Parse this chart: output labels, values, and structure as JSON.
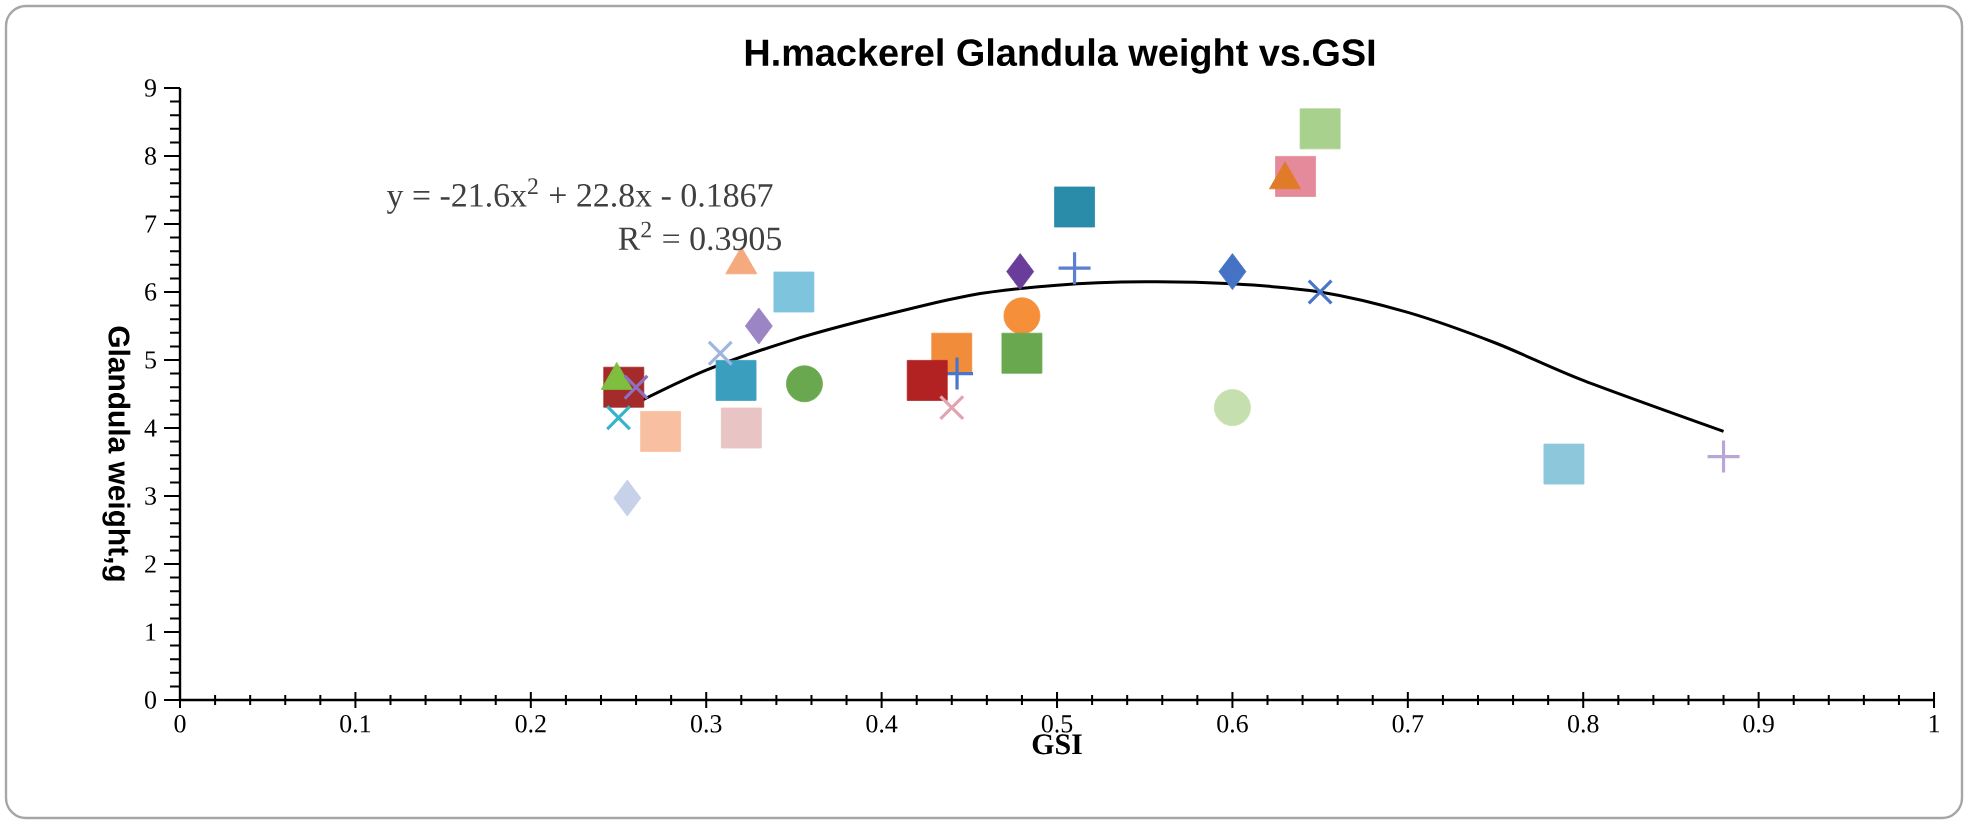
{
  "chart_data": {
    "type": "scatter",
    "title": "H.mackerel Glandula weight vs.GSI",
    "xlabel": "GSI",
    "ylabel": "Glandula weight,g",
    "annotations": [
      "y = -21.6x$^{2}$ + 22.8x - 0.1867",
      "R$^{2}$ = 0.3905"
    ],
    "xlim": [
      0,
      1
    ],
    "ylim": [
      0,
      9
    ],
    "xticks": [
      0,
      0.1,
      0.2,
      0.3,
      0.4,
      0.5,
      0.6,
      0.7,
      0.8,
      0.9,
      1
    ],
    "yticks": [
      0,
      1,
      2,
      3,
      4,
      5,
      6,
      7,
      8,
      9
    ],
    "series": [
      {
        "color": "#f5a97f",
        "marker": "triangle",
        "x": [
          0.32
        ],
        "values": [
          6.4
        ]
      },
      {
        "color": "#7fc4dd",
        "marker": "square",
        "x": [
          0.35
        ],
        "values": [
          6.0
        ]
      },
      {
        "color": "#9b85c4",
        "marker": "diamond",
        "x": [
          0.33
        ],
        "values": [
          5.5
        ]
      },
      {
        "color": "#6aa84f",
        "marker": "circle",
        "x": [
          0.356
        ],
        "values": [
          4.65
        ]
      },
      {
        "color": "#e8c4c4",
        "marker": "square",
        "x": [
          0.32
        ],
        "values": [
          4.0
        ]
      },
      {
        "color": "#c7d1ea",
        "marker": "diamond",
        "x": [
          0.255
        ],
        "values": [
          2.97
        ]
      },
      {
        "color": "#a52a2a",
        "marker": "square",
        "x": [
          0.253
        ],
        "values": [
          4.6
        ]
      },
      {
        "color": "#7fbf3f",
        "marker": "triangle",
        "x": [
          0.249
        ],
        "values": [
          4.7
        ]
      },
      {
        "color": "#38b4c8",
        "marker": "cross",
        "x": [
          0.25
        ],
        "values": [
          4.15
        ]
      },
      {
        "color": "#f8bfa0",
        "marker": "square",
        "x": [
          0.274
        ],
        "values": [
          3.95
        ]
      },
      {
        "color": "#8f6fbf",
        "marker": "cross",
        "x": [
          0.26
        ],
        "values": [
          4.6
        ]
      },
      {
        "color": "#3a9fbf",
        "marker": "square",
        "x": [
          0.317
        ],
        "values": [
          4.7
        ]
      },
      {
        "color": "#9fb5e0",
        "marker": "cross",
        "x": [
          0.308
        ],
        "values": [
          5.1
        ]
      },
      {
        "color": "#2a8ca8",
        "marker": "square",
        "x": [
          0.51
        ],
        "values": [
          7.25
        ]
      },
      {
        "color": "#6a3d9a",
        "marker": "diamond",
        "x": [
          0.479
        ],
        "values": [
          6.3
        ]
      },
      {
        "color": "#5b7fd1",
        "marker": "plus",
        "x": [
          0.51
        ],
        "values": [
          6.35
        ]
      },
      {
        "color": "#f58f3a",
        "marker": "circle",
        "x": [
          0.48
        ],
        "values": [
          5.65
        ]
      },
      {
        "color": "#6aa84f",
        "marker": "square",
        "x": [
          0.48
        ],
        "values": [
          5.1
        ]
      },
      {
        "color": "#f08c3a",
        "marker": "square",
        "x": [
          0.44
        ],
        "values": [
          5.1
        ]
      },
      {
        "color": "#4a76c9",
        "marker": "plus",
        "x": [
          0.443
        ],
        "values": [
          4.8
        ]
      },
      {
        "color": "#b22222",
        "marker": "square",
        "x": [
          0.426
        ],
        "values": [
          4.7
        ]
      },
      {
        "color": "#e3a3b0",
        "marker": "cross",
        "x": [
          0.44
        ],
        "values": [
          4.3
        ]
      },
      {
        "color": "#4472c4",
        "marker": "diamond",
        "x": [
          0.6
        ],
        "values": [
          6.3
        ]
      },
      {
        "color": "#c5dfae",
        "marker": "circle",
        "x": [
          0.6
        ],
        "values": [
          4.3
        ]
      },
      {
        "color": "#4a76c9",
        "marker": "cross",
        "x": [
          0.65
        ],
        "values": [
          6.0
        ]
      },
      {
        "color": "#e58a9a",
        "marker": "square",
        "x": [
          0.636
        ],
        "values": [
          7.7
        ]
      },
      {
        "color": "#e07b2a",
        "marker": "triangle",
        "x": [
          0.63
        ],
        "values": [
          7.65
        ]
      },
      {
        "color": "#a9d18e",
        "marker": "square",
        "x": [
          0.65
        ],
        "values": [
          8.4
        ]
      },
      {
        "color": "#8cc7dc",
        "marker": "square",
        "x": [
          0.789
        ],
        "values": [
          3.47
        ]
      },
      {
        "color": "#b9a6d6",
        "marker": "plus",
        "x": [
          0.88
        ],
        "values": [
          3.58
        ]
      },
      {
        "type": "line",
        "color": "#000000",
        "marker": "none",
        "x": [
          0.255,
          0.3,
          0.35,
          0.4,
          0.45,
          0.5,
          0.55,
          0.6,
          0.65,
          0.7,
          0.75,
          0.8,
          0.88
        ],
        "values": [
          4.3,
          4.85,
          5.3,
          5.65,
          5.95,
          6.1,
          6.15,
          6.12,
          6.0,
          5.7,
          5.25,
          4.7,
          3.95
        ]
      }
    ]
  }
}
